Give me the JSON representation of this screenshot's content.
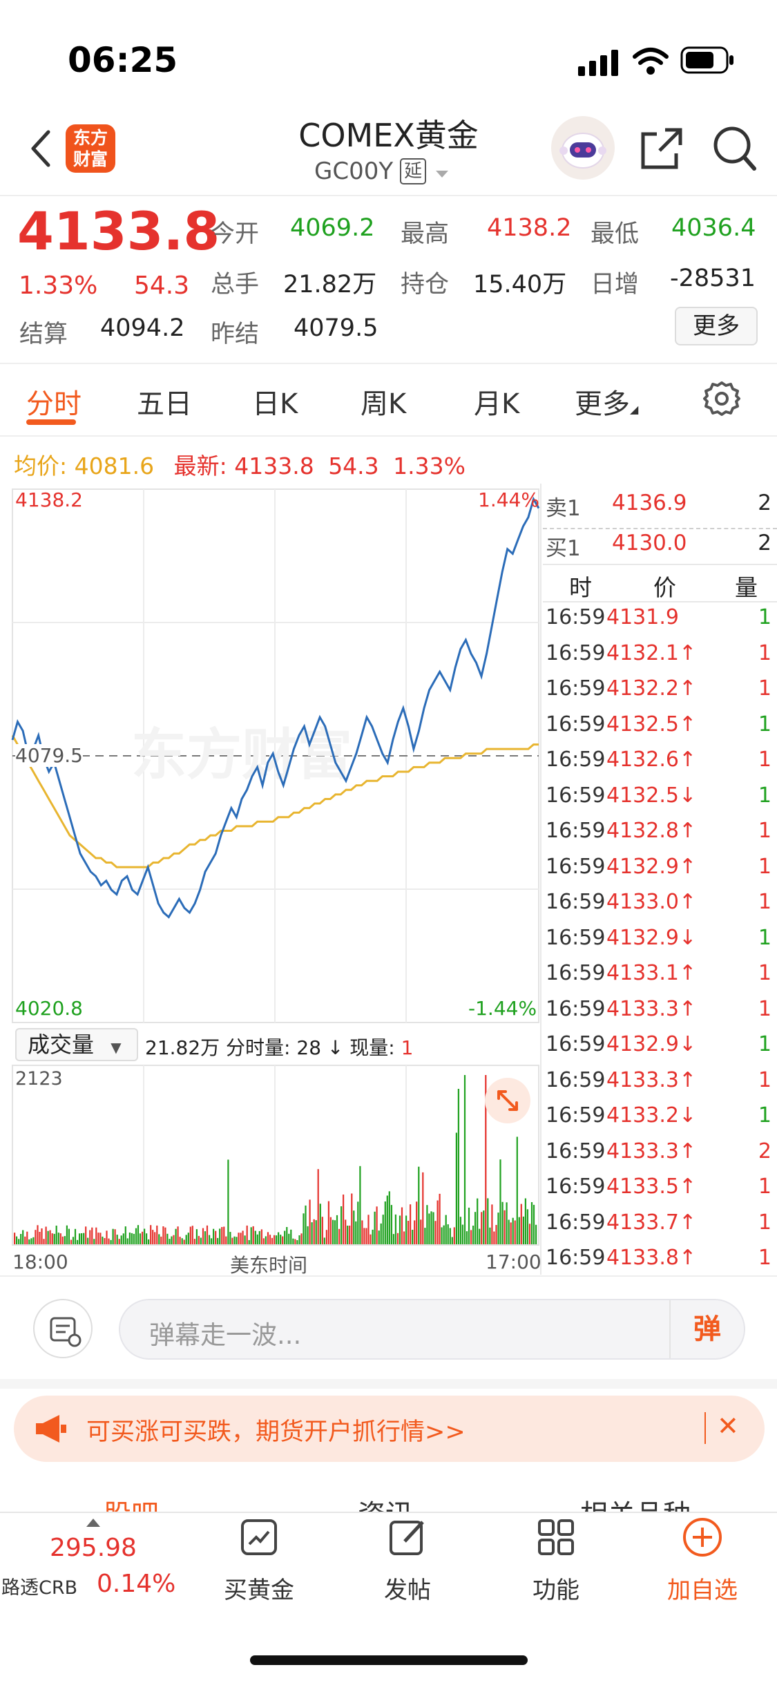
{
  "status_bar": {
    "time": "06:25"
  },
  "header": {
    "title": "COMEX黄金",
    "code": "GC00Y",
    "delay_badge": "延",
    "logo_line1": "东方",
    "logo_line2": "财富"
  },
  "quote": {
    "price": "4133.8",
    "change_pct": "1.33%",
    "change": "54.3",
    "open_label": "今开",
    "open": "4069.2",
    "high_label": "最高",
    "high": "4138.2",
    "low_label": "最低",
    "low": "4036.4",
    "volume_label": "总手",
    "volume": "21.82万",
    "oi_label": "持仓",
    "oi": "15.40万",
    "daily_inc_label": "日增",
    "daily_inc": "-28531",
    "settle_label": "结算",
    "settle": "4094.2",
    "prev_settle_label": "昨结",
    "prev_settle": "4079.5",
    "more_label": "更多"
  },
  "period_tabs": [
    "分时",
    "五日",
    "日K",
    "周K",
    "月K",
    "更多"
  ],
  "legend": {
    "avg_label": "均价:",
    "avg_value": "4081.6",
    "latest_label": "最新:",
    "latest_value": "4133.8",
    "latest_change": "54.3",
    "latest_pct": "1.33%"
  },
  "chart_labels": {
    "top_price": "4138.2",
    "top_pct": "1.44%",
    "mid_price": "4079.5",
    "bottom_price": "4020.8",
    "bottom_pct": "-1.44%",
    "watermark": "东方财富",
    "volume_selector": "成交量",
    "volume_info": "21.82万 分时量: 28 ↓ 现量:",
    "volume_now": "1",
    "volume_max": "2123",
    "time_start": "18:00",
    "time_mid": "美东时间",
    "time_end": "17:00"
  },
  "order_book": {
    "sell_label": "卖1",
    "sell_price": "4136.9",
    "sell_qty": "2",
    "buy_label": "买1",
    "buy_price": "4130.0",
    "buy_qty": "2",
    "col_time": "时",
    "col_price": "价",
    "col_qty": "量"
  },
  "ticks": [
    {
      "time": "16:59",
      "price": "4131.9",
      "arrow": "",
      "qty": "1",
      "qty_color": "#1fa11f"
    },
    {
      "time": "16:59",
      "price": "4132.1↑",
      "arrow": "",
      "qty": "1",
      "qty_color": "#e5322d"
    },
    {
      "time": "16:59",
      "price": "4132.2↑",
      "arrow": "",
      "qty": "1",
      "qty_color": "#e5322d"
    },
    {
      "time": "16:59",
      "price": "4132.5↑",
      "arrow": "",
      "qty": "1",
      "qty_color": "#1fa11f"
    },
    {
      "time": "16:59",
      "price": "4132.6↑",
      "arrow": "",
      "qty": "1",
      "qty_color": "#e5322d"
    },
    {
      "time": "16:59",
      "price": "4132.5↓",
      "arrow": "",
      "qty": "1",
      "qty_color": "#1fa11f"
    },
    {
      "time": "16:59",
      "price": "4132.8↑",
      "arrow": "",
      "qty": "1",
      "qty_color": "#e5322d"
    },
    {
      "time": "16:59",
      "price": "4132.9↑",
      "arrow": "",
      "qty": "1",
      "qty_color": "#e5322d"
    },
    {
      "time": "16:59",
      "price": "4133.0↑",
      "arrow": "",
      "qty": "1",
      "qty_color": "#e5322d"
    },
    {
      "time": "16:59",
      "price": "4132.9↓",
      "arrow": "",
      "qty": "1",
      "qty_color": "#1fa11f"
    },
    {
      "time": "16:59",
      "price": "4133.1↑",
      "arrow": "",
      "qty": "1",
      "qty_color": "#e5322d"
    },
    {
      "time": "16:59",
      "price": "4133.3↑",
      "arrow": "",
      "qty": "1",
      "qty_color": "#e5322d"
    },
    {
      "time": "16:59",
      "price": "4132.9↓",
      "arrow": "",
      "qty": "1",
      "qty_color": "#1fa11f"
    },
    {
      "time": "16:59",
      "price": "4133.3↑",
      "arrow": "",
      "qty": "1",
      "qty_color": "#e5322d"
    },
    {
      "time": "16:59",
      "price": "4133.2↓",
      "arrow": "",
      "qty": "1",
      "qty_color": "#1fa11f"
    },
    {
      "time": "16:59",
      "price": "4133.3↑",
      "arrow": "",
      "qty": "2",
      "qty_color": "#e5322d"
    },
    {
      "time": "16:59",
      "price": "4133.5↑",
      "arrow": "",
      "qty": "1",
      "qty_color": "#e5322d"
    },
    {
      "time": "16:59",
      "price": "4133.7↑",
      "arrow": "",
      "qty": "1",
      "qty_color": "#e5322d"
    },
    {
      "time": "16:59",
      "price": "4133.8↑",
      "arrow": "",
      "qty": "1",
      "qty_color": "#e5322d"
    }
  ],
  "barrage": {
    "placeholder": "弹幕走一波...",
    "send_label": "弹"
  },
  "promo": {
    "text": "可买涨可买跌，期货开户抓行情>>"
  },
  "sub_tabs": [
    "股吧",
    "资讯",
    "相关品种"
  ],
  "bottom_nav": {
    "index_value": "295.98",
    "index_name": "路透CRB",
    "index_pct": "0.14%",
    "items": [
      "买黄金",
      "发帖",
      "功能",
      "加自选"
    ]
  },
  "colors": {
    "up": "#e5322d",
    "down": "#1fa11f",
    "accent": "#f25a1e",
    "price_line": "#2b6cb8",
    "avg_line": "#e8b530"
  },
  "chart_data": {
    "type": "line",
    "title": "",
    "ylim": [
      4020.8,
      4138.2
    ],
    "reference_price": 4079.5,
    "x_range": [
      "18:00",
      "17:00"
    ],
    "series": [
      {
        "values": [
          4083,
          4087,
          4085,
          4080,
          4081,
          4084,
          4079,
          4076,
          4078,
          4074,
          4070,
          4066,
          4062,
          4058,
          4056,
          4054,
          4053,
          4051,
          4052,
          4050,
          4049,
          4052,
          4053,
          4050,
          4049,
          4052,
          4055,
          4051,
          4047,
          4045,
          4044,
          4046,
          4048,
          4046,
          4045,
          4047,
          4050,
          4054,
          4056,
          4058,
          4062,
          4065,
          4068,
          4066,
          4070,
          4072,
          4075,
          4077,
          4073,
          4078,
          4080,
          4076,
          4073,
          4077,
          4081,
          4084,
          4086,
          4082,
          4085,
          4088,
          4086,
          4082,
          4078,
          4076,
          4074,
          4077,
          4080,
          4084,
          4088,
          4086,
          4083,
          4080,
          4078,
          4083,
          4087,
          4090,
          4086,
          4081,
          4085,
          4090,
          4094,
          4096,
          4098,
          4096,
          4094,
          4099,
          4103,
          4105,
          4102,
          4100,
          4097,
          4102,
          4108,
          4114,
          4120,
          4125,
          4124,
          4127,
          4130,
          4132,
          4136,
          4134
        ]
      },
      {
        "values": [
          4084,
          4082,
          4080,
          4078,
          4076,
          4074,
          4072,
          4070,
          4068,
          4066,
          4064,
          4062,
          4061,
          4060,
          4059,
          4058,
          4057,
          4057,
          4056,
          4056,
          4055,
          4055,
          4055,
          4055,
          4055,
          4055,
          4055,
          4056,
          4056,
          4057,
          4057,
          4058,
          4058,
          4059,
          4060,
          4060,
          4061,
          4061,
          4062,
          4062,
          4063,
          4063,
          4063,
          4064,
          4064,
          4064,
          4064,
          4065,
          4065,
          4065,
          4065,
          4066,
          4066,
          4066,
          4067,
          4067,
          4068,
          4068,
          4069,
          4069,
          4070,
          4070,
          4071,
          4071,
          4072,
          4072,
          4073,
          4073,
          4074,
          4074,
          4074,
          4075,
          4075,
          4075,
          4076,
          4076,
          4076,
          4077,
          4077,
          4077,
          4078,
          4078,
          4078,
          4079,
          4079,
          4079,
          4079,
          4080,
          4080,
          4080,
          4080,
          4081,
          4081,
          4081,
          4081,
          4081,
          4081,
          4081,
          4081,
          4081,
          4082,
          4082
        ]
      }
    ]
  }
}
